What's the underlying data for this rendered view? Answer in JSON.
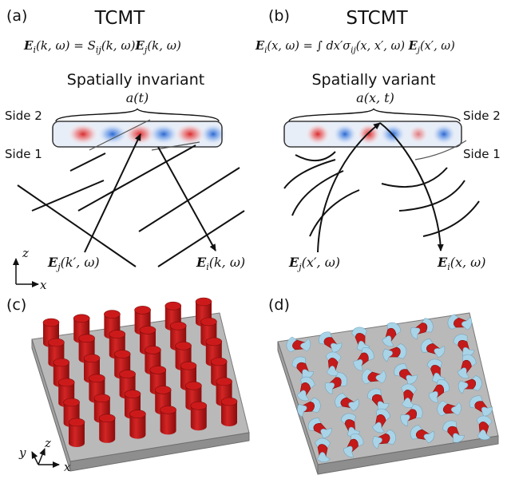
{
  "panel_a": {
    "letter": "(a)",
    "title": "TCMT",
    "eq_lhs": "E",
    "eq_lhs_sub": "i",
    "eq_lhs_args": "(k, ω) = S",
    "eq_s_sub": "ij",
    "eq_mid": "(k, ω)",
    "eq_rhs": "E",
    "eq_rhs_sub": "j",
    "eq_rhs_args": "(k, ω)",
    "subtitle": "Spatially invariant",
    "mode_amp": "a(t)",
    "side_top": "Side 2",
    "side_bottom": "Side 1",
    "input_field": "E",
    "input_sub": "j",
    "input_args": "(k′, ω)",
    "output_field": "E",
    "output_sub": "i",
    "output_args": "(k, ω)",
    "axis_z": "z",
    "axis_x": "x"
  },
  "panel_b": {
    "letter": "(b)",
    "title": "STCMT",
    "eq_lhs": "E",
    "eq_lhs_sub": "i",
    "eq_lhs_args": "(x, ω) = ∫ dx′σ",
    "eq_sigma_sub": "ij",
    "eq_mid": "(x, x′, ω) ",
    "eq_rhs": "E",
    "eq_rhs_sub": "j",
    "eq_rhs_args": "(x′, ω)",
    "subtitle": "Spatially variant",
    "mode_amp": "a(x, t)",
    "side_top": "Side 2",
    "side_bottom": "Side 1",
    "input_field": "E",
    "input_sub": "j",
    "input_args": "(x′, ω)",
    "output_field": "E",
    "output_sub": "i",
    "output_args": "(x, ω)"
  },
  "panel_c": {
    "letter": "(c)",
    "axis_y": "y",
    "axis_z": "z",
    "axis_x": "x"
  },
  "panel_d": {
    "letter": "(d)"
  },
  "colors": {
    "pillar": "#cc1a1a",
    "slab_top": "#b8b8b8",
    "slab_side": "#8f8f8f",
    "ribbon_blue": "#a9d4e8",
    "ribbon_red": "#c41a1a",
    "mode_red": "#e53030",
    "mode_blue": "#2a6fd6"
  }
}
